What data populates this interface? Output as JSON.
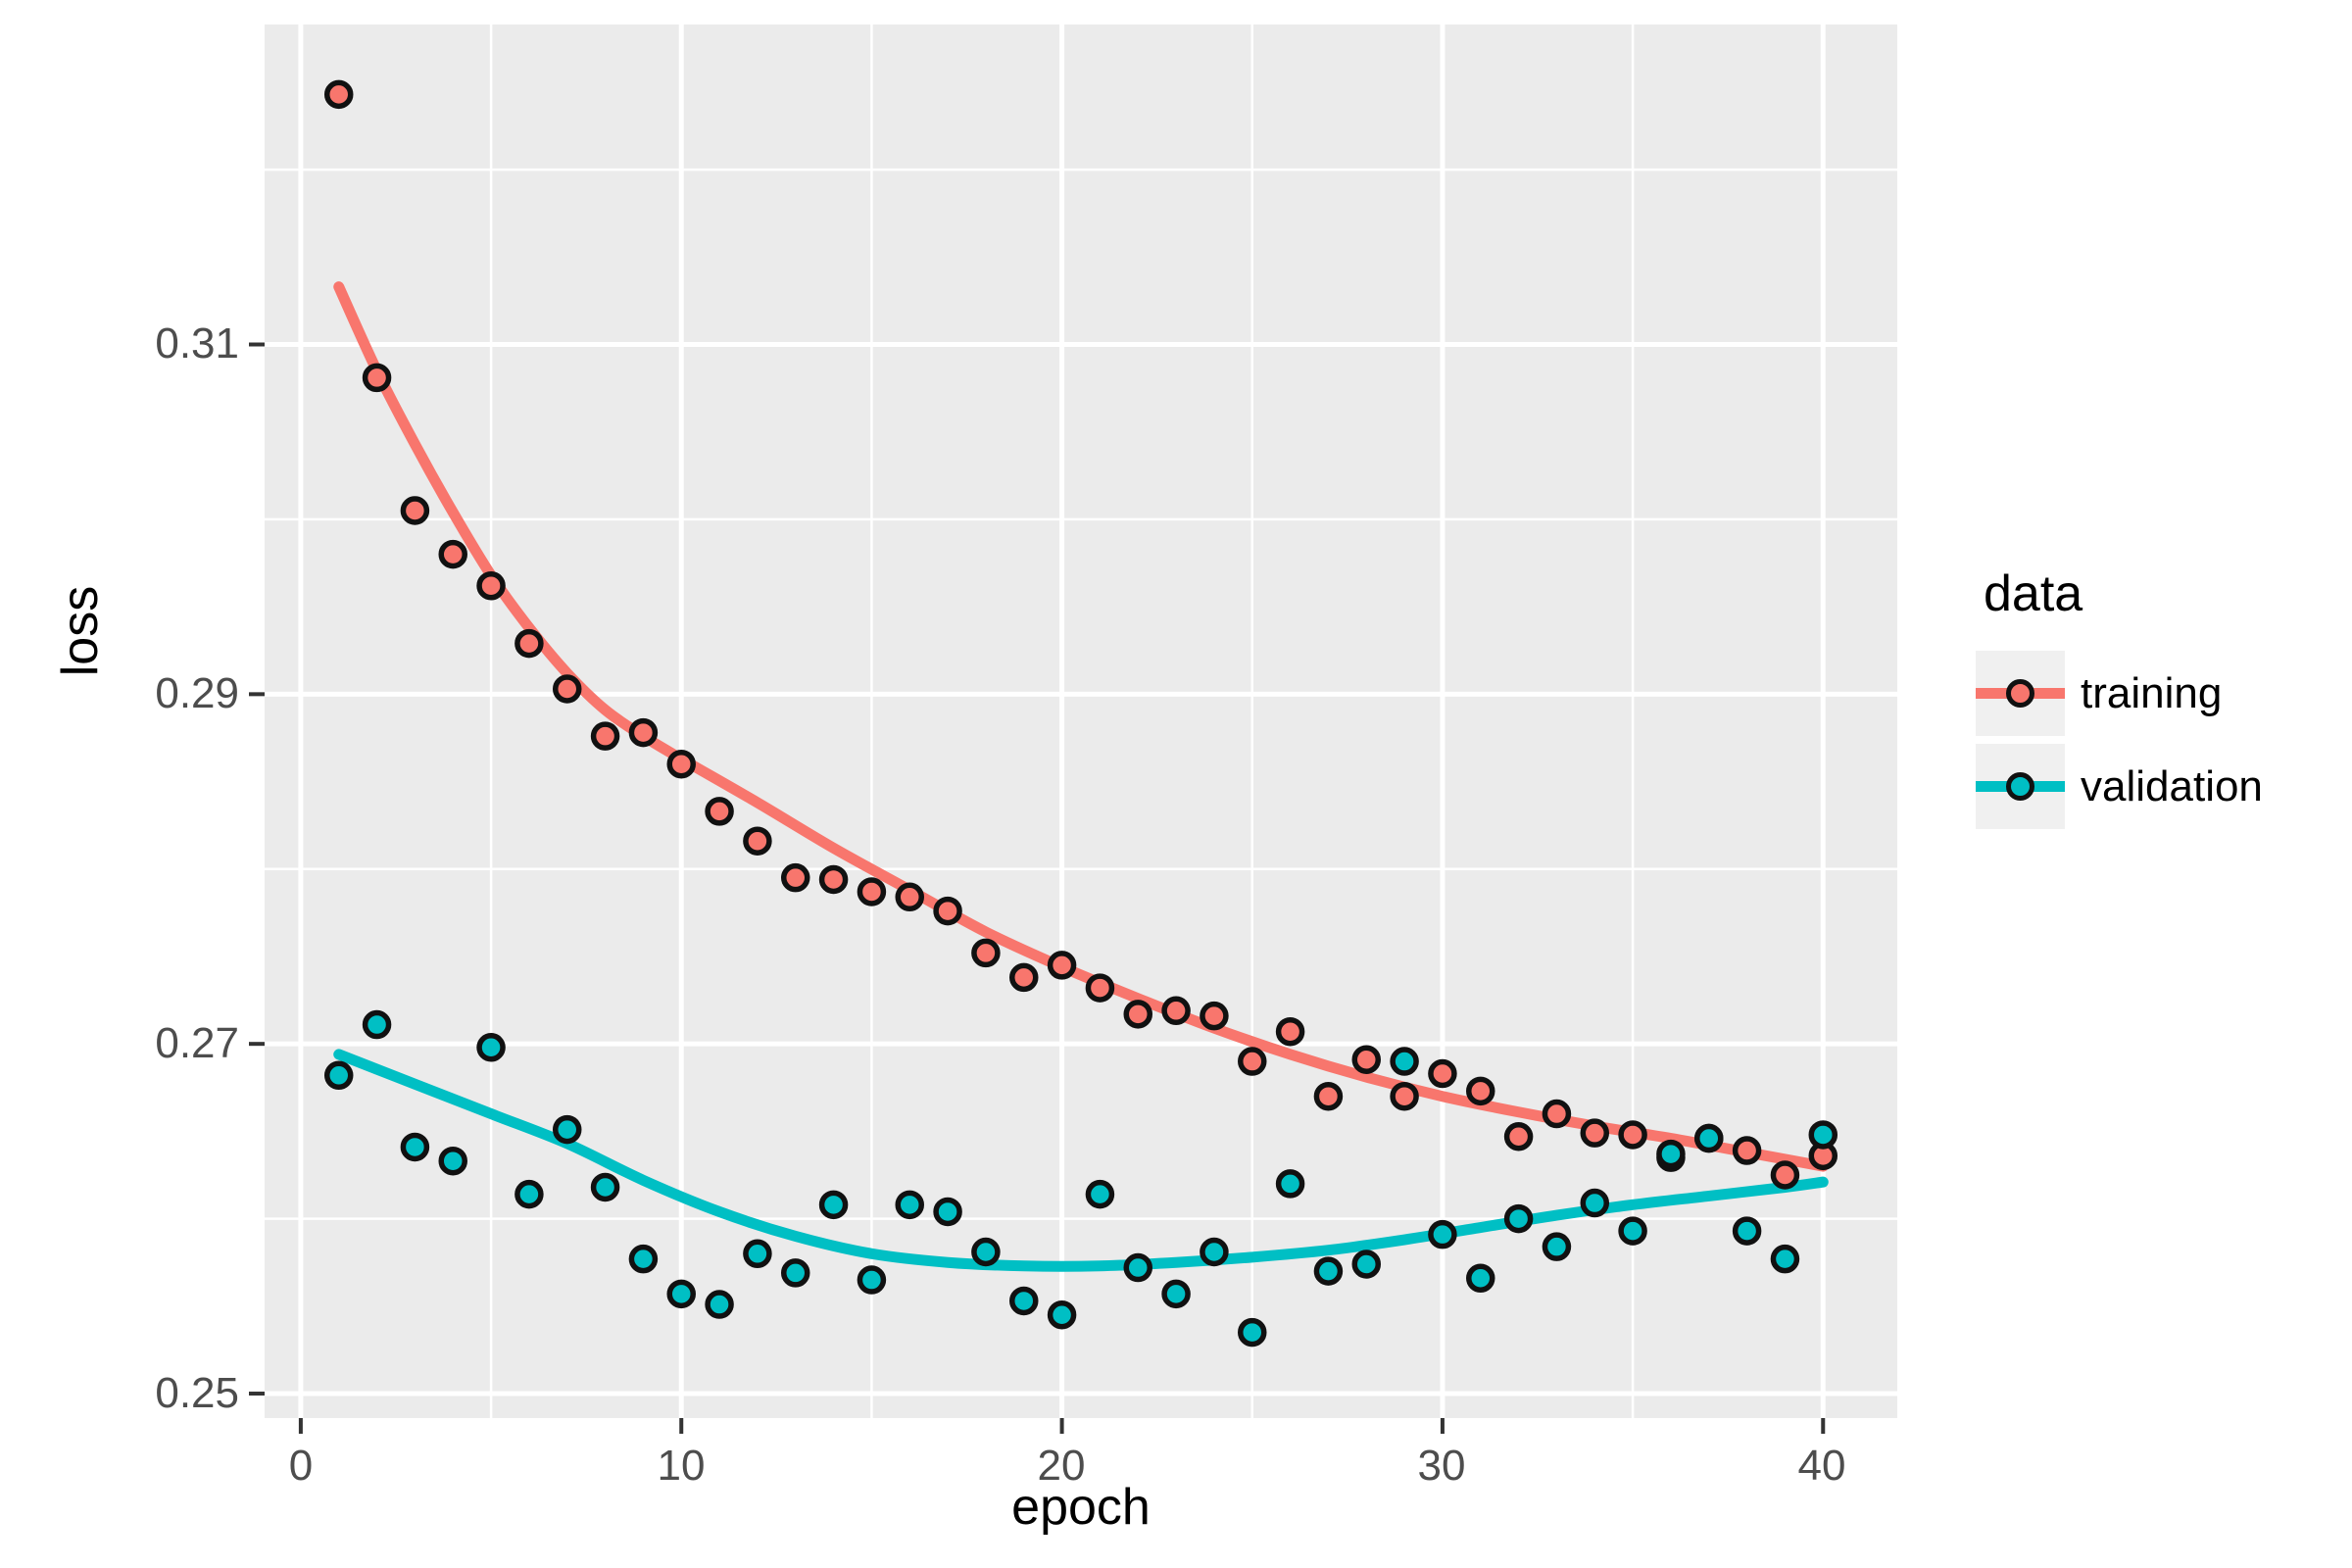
{
  "chart_data": {
    "type": "scatter",
    "xlabel": "epoch",
    "ylabel": "loss",
    "legend_title": "data",
    "legend_position": "right",
    "grid": true,
    "panel_color": "#EBEBEB",
    "grid_color": "#FFFFFF",
    "point_outline": "#111111",
    "xlim": [
      -0.95,
      41.95
    ],
    "ylim": [
      0.2486,
      0.3283
    ],
    "x_ticks": [
      0,
      10,
      20,
      30,
      40
    ],
    "x_tick_labels": [
      "0",
      "10",
      "20",
      "30",
      "40"
    ],
    "x_minor_ticks": [
      5,
      15,
      25,
      35
    ],
    "y_ticks": [
      0.25,
      0.27,
      0.29,
      0.31
    ],
    "y_tick_labels": [
      "0.25",
      "0.27",
      "0.29",
      "0.31"
    ],
    "y_minor_ticks": [
      0.26,
      0.28,
      0.3,
      0.32
    ],
    "series": [
      {
        "name": "training",
        "color": "#F8766D",
        "x": [
          1,
          2,
          3,
          4,
          5,
          6,
          7,
          8,
          9,
          10,
          11,
          12,
          13,
          14,
          15,
          16,
          17,
          18,
          19,
          20,
          21,
          22,
          23,
          24,
          25,
          26,
          27,
          28,
          29,
          30,
          31,
          32,
          33,
          34,
          35,
          36,
          37,
          38,
          39,
          40
        ],
        "y": [
          0.3243,
          0.3081,
          0.3005,
          0.298,
          0.2962,
          0.2929,
          0.2903,
          0.2876,
          0.2878,
          0.286,
          0.2833,
          0.2816,
          0.2795,
          0.2794,
          0.2787,
          0.2784,
          0.2776,
          0.2752,
          0.2738,
          0.2745,
          0.2732,
          0.2717,
          0.2719,
          0.2716,
          0.269,
          0.2707,
          0.267,
          0.2691,
          0.267,
          0.2683,
          0.2673,
          0.2647,
          0.266,
          0.2649,
          0.2648,
          0.2635,
          0.2646,
          0.2639,
          0.2625,
          0.2636
        ]
      },
      {
        "name": "validation",
        "color": "#00BFC4",
        "x": [
          1,
          2,
          3,
          4,
          5,
          6,
          7,
          8,
          9,
          10,
          11,
          12,
          13,
          14,
          15,
          16,
          17,
          18,
          19,
          20,
          21,
          22,
          23,
          24,
          25,
          26,
          27,
          28,
          29,
          30,
          31,
          32,
          33,
          34,
          35,
          36,
          37,
          38,
          39,
          40
        ],
        "y": [
          0.2682,
          0.2711,
          0.2641,
          0.2633,
          0.2698,
          0.2614,
          0.2651,
          0.2618,
          0.2577,
          0.2557,
          0.2551,
          0.258,
          0.2569,
          0.2608,
          0.2565,
          0.2608,
          0.2604,
          0.2581,
          0.2553,
          0.2545,
          0.2614,
          0.2572,
          0.2557,
          0.2581,
          0.2535,
          0.262,
          0.257,
          0.2574,
          0.269,
          0.2591,
          0.2566,
          0.26,
          0.2584,
          0.2609,
          0.2593,
          0.2637,
          0.2646,
          0.2593,
          0.2577,
          0.2648
        ]
      }
    ],
    "trends": [
      {
        "name": "training",
        "color": "#F8766D",
        "x": [
          1,
          2,
          3,
          4,
          5,
          6,
          7,
          8,
          9,
          10,
          12,
          14,
          16,
          18,
          20,
          22,
          24,
          26,
          28,
          30,
          32,
          34,
          36,
          38,
          40
        ],
        "y": [
          0.3133,
          0.3085,
          0.3043,
          0.3004,
          0.2968,
          0.2938,
          0.2912,
          0.2891,
          0.2876,
          0.2863,
          0.2838,
          0.2812,
          0.2788,
          0.2764,
          0.2744,
          0.2726,
          0.2709,
          0.2694,
          0.2681,
          0.267,
          0.2661,
          0.2653,
          0.2646,
          0.2638,
          0.263
        ]
      },
      {
        "name": "validation",
        "color": "#00BFC4",
        "x": [
          1,
          3,
          5,
          7,
          9,
          11,
          13,
          15,
          17,
          19,
          21,
          23,
          25,
          27,
          29,
          31,
          33,
          35,
          37,
          39,
          40
        ],
        "y": [
          0.2694,
          0.2677,
          0.266,
          0.2643,
          0.2622,
          0.2604,
          0.259,
          0.258,
          0.2575,
          0.2573,
          0.2573,
          0.2575,
          0.2578,
          0.2582,
          0.2588,
          0.2595,
          0.2602,
          0.2608,
          0.2613,
          0.2618,
          0.2621
        ]
      }
    ]
  }
}
